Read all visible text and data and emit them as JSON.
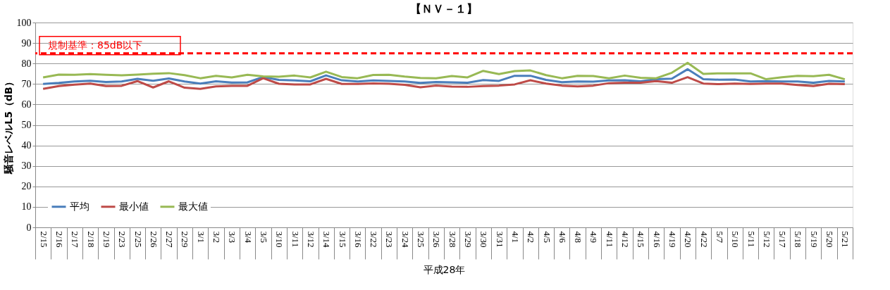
{
  "chart_data": {
    "type": "line",
    "title": "【ＮＶ－１】",
    "xlabel": "平成28年",
    "ylabel": "騒音レベルL5（dB）",
    "categories": [
      "2/15",
      "2/16",
      "2/17",
      "2/18",
      "2/19",
      "2/23",
      "2/25",
      "2/26",
      "2/27",
      "2/29",
      "3/1",
      "3/2",
      "3/3",
      "3/4",
      "3/5",
      "3/10",
      "3/11",
      "3/12",
      "3/14",
      "3/15",
      "3/16",
      "3/22",
      "3/23",
      "3/24",
      "3/25",
      "3/26",
      "3/28",
      "3/29",
      "3/30",
      "3/31",
      "4/1",
      "4/2",
      "4/5",
      "4/6",
      "4/8",
      "4/9",
      "4/11",
      "4/12",
      "4/15",
      "4/16",
      "4/19",
      "4/20",
      "4/22",
      "5/7",
      "5/10",
      "5/11",
      "5/12",
      "5/17",
      "5/18",
      "5/19",
      "5/20",
      "5/21"
    ],
    "series": [
      {
        "name": "平均",
        "color": "#4a7ebb",
        "values": [
          70,
          70.5,
          71.2,
          71.6,
          71,
          71.2,
          72.5,
          71.6,
          72.7,
          71.2,
          70.2,
          71.3,
          70.7,
          70.8,
          73.4,
          72,
          71.7,
          71.3,
          74.2,
          71.8,
          71.2,
          71.7,
          71.5,
          71.2,
          70.5,
          71,
          70.8,
          70.6,
          71.9,
          71.5,
          74,
          74,
          72,
          70.9,
          71.2,
          71.1,
          71.7,
          71.8,
          71.3,
          72.3,
          72.6,
          77.2,
          72.3,
          72.1,
          72.2,
          71.2,
          71.4,
          71.2,
          71.2,
          70.6,
          71.5,
          71.2
        ]
      },
      {
        "name": "最小値",
        "color": "#be4b48",
        "values": [
          67.6,
          69,
          69.7,
          70.2,
          69,
          69.1,
          71.4,
          68.3,
          71.3,
          68.2,
          67.6,
          68.8,
          69.1,
          69.1,
          72.8,
          70.1,
          69.8,
          69.8,
          72.5,
          70,
          70,
          70.3,
          70.1,
          69.6,
          68.4,
          69.2,
          68.7,
          68.6,
          69,
          69.2,
          69.8,
          71.8,
          70.2,
          69.2,
          68.8,
          69.2,
          70.4,
          70.6,
          70.6,
          71.4,
          70.6,
          73.3,
          70.2,
          69.9,
          70.2,
          70,
          70.2,
          70.2,
          69.5,
          69,
          70.1,
          69.9
        ]
      },
      {
        "name": "最大値",
        "color": "#98b954",
        "values": [
          73.2,
          74.6,
          74.5,
          74.8,
          74.5,
          74.2,
          74.6,
          75,
          75.3,
          74.3,
          72.8,
          74,
          73.2,
          74.5,
          73.7,
          73.5,
          74.1,
          73.2,
          76,
          73.4,
          72.8,
          74.4,
          74.5,
          73.6,
          72.9,
          72.8,
          73.9,
          73.2,
          76.4,
          74.8,
          76.3,
          76.6,
          74.3,
          72.8,
          74,
          73.9,
          72.8,
          74.1,
          73,
          72.8,
          75.5,
          80.3,
          74.9,
          75.2,
          75.2,
          75.2,
          72.3,
          73.3,
          74,
          73.8,
          74.5,
          72.3
        ]
      }
    ],
    "ylim": [
      0,
      100
    ],
    "yticks": [
      0,
      10,
      20,
      30,
      40,
      50,
      60,
      70,
      80,
      90,
      100
    ],
    "ref_lines": [
      {
        "axis": "y",
        "value": 85,
        "label": "規制基準：85dB以下",
        "color": "#ff0000",
        "line_style": "dashed"
      }
    ],
    "grid": "y",
    "legend": "bottom left",
    "marker": "none",
    "line_style": "solid"
  }
}
